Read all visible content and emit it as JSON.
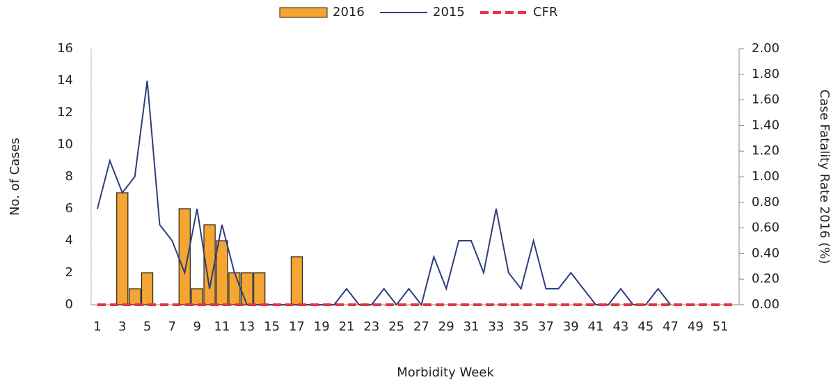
{
  "chart_data": {
    "type": "bar",
    "legend": "top",
    "grid": true,
    "xlabel": "Morbidity Week",
    "ylabel": "No. of Cases",
    "y2label": "Case Fatality Rate 2016 (%)",
    "categories": [
      "1",
      null,
      "3",
      null,
      "5",
      null,
      "7",
      null,
      "9",
      null,
      "11",
      null,
      "13",
      null,
      "15",
      null,
      "17",
      null,
      "19",
      null,
      "21",
      null,
      "23",
      null,
      "25",
      null,
      "27",
      null,
      "29",
      null,
      "31",
      null,
      "33",
      null,
      "35",
      null,
      "37",
      null,
      "39",
      null,
      "41",
      null,
      "43",
      null,
      "45",
      null,
      "47",
      null,
      "49",
      null,
      "51",
      null
    ],
    "ylim": [
      0,
      16
    ],
    "yticks": [
      0,
      2,
      4,
      6,
      8,
      10,
      12,
      14,
      16
    ],
    "y2lim": [
      0,
      2
    ],
    "y2ticks": [
      {
        "value": 0,
        "label": "0.00"
      },
      {
        "value": 0.2,
        "label": "0.20"
      },
      {
        "value": 0.4,
        "label": "0.40"
      },
      {
        "value": 0.6,
        "label": "0.60"
      },
      {
        "value": 0.8,
        "label": "0.80"
      },
      {
        "value": 1.0,
        "label": "1.00"
      },
      {
        "value": 1.2,
        "label": "1.20"
      },
      {
        "value": 1.4,
        "label": "1.40"
      },
      {
        "value": 1.6,
        "label": "1.60"
      },
      {
        "value": 1.8,
        "label": "1.80"
      },
      {
        "value": 2.0,
        "label": "2.00"
      }
    ],
    "series": [
      {
        "name": "2016",
        "type": "bar",
        "color": "#f5a531",
        "values": [
          0,
          0,
          7,
          1,
          2,
          0,
          0,
          6,
          1,
          5,
          4,
          2,
          2,
          2,
          0,
          0,
          3,
          0,
          0,
          0,
          0,
          0,
          0,
          0,
          0,
          0,
          0,
          0,
          0,
          0,
          0,
          0,
          0,
          0,
          0,
          0,
          0,
          0,
          0,
          0,
          0,
          0,
          0,
          0,
          0,
          0,
          0,
          0,
          0,
          0,
          0,
          0
        ]
      },
      {
        "name": "2015",
        "type": "line",
        "color": "#2e3d7c",
        "values": [
          6,
          9,
          7,
          8,
          14,
          5,
          4,
          2,
          6,
          1,
          5,
          2,
          0,
          0,
          0,
          0,
          0,
          0,
          0,
          0,
          1,
          0,
          0,
          1,
          0,
          1,
          0,
          3,
          1,
          4,
          4,
          2,
          6,
          2,
          1,
          4,
          1,
          1,
          2,
          1,
          0,
          0,
          1,
          0,
          0,
          1,
          0,
          null,
          null,
          null,
          null,
          null
        ]
      },
      {
        "name": "CFR",
        "type": "dashed",
        "axis": "y2",
        "color": "#e8333f",
        "values": [
          0,
          0,
          0,
          0,
          0,
          0,
          0,
          0,
          0,
          0,
          0,
          0,
          0,
          0,
          0,
          0,
          0,
          0,
          0,
          0,
          0,
          0,
          0,
          0,
          0,
          0,
          0,
          0,
          0,
          0,
          0,
          0,
          0,
          0,
          0,
          0,
          0,
          0,
          0,
          0,
          0,
          0,
          0,
          0,
          0,
          0,
          0,
          0,
          0,
          0,
          0,
          0
        ]
      }
    ]
  }
}
